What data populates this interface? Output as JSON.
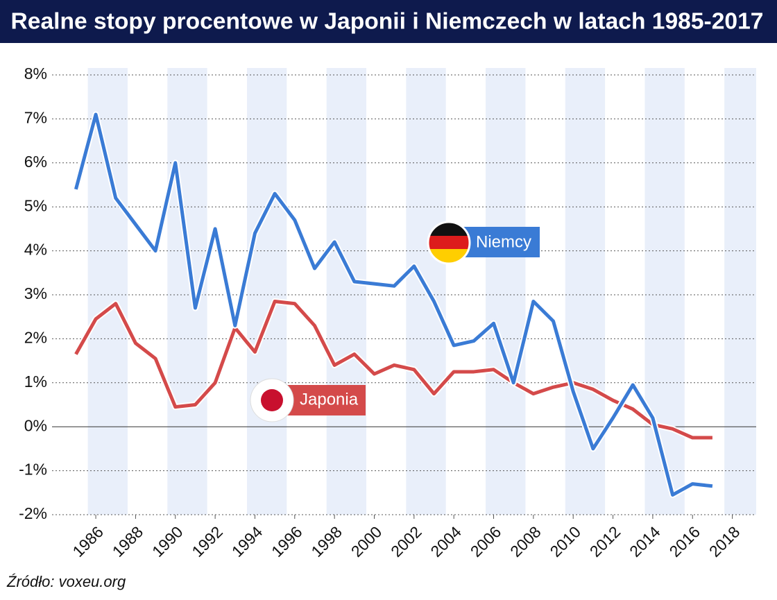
{
  "chart_data": {
    "type": "line",
    "title": "Realne stopy procentowe w Japonii i Niemczech w latach 1985-2017",
    "source": "Źródło: voxeu.org",
    "x": [
      1985,
      1986,
      1987,
      1988,
      1989,
      1990,
      1991,
      1992,
      1993,
      1994,
      1995,
      1996,
      1997,
      1998,
      1999,
      2000,
      2001,
      2002,
      2003,
      2004,
      2005,
      2006,
      2007,
      2008,
      2009,
      2010,
      2011,
      2012,
      2013,
      2014,
      2015,
      2016,
      2017
    ],
    "series": [
      {
        "name": "Niemcy",
        "color": "#3a7bd5",
        "values": [
          5.4,
          7.1,
          5.2,
          4.6,
          4.0,
          6.0,
          2.7,
          4.5,
          2.3,
          4.4,
          5.3,
          4.7,
          3.6,
          4.2,
          3.3,
          3.25,
          3.2,
          3.65,
          2.85,
          1.85,
          1.95,
          2.35,
          1.0,
          2.85,
          2.4,
          0.8,
          -0.5,
          0.2,
          0.95,
          0.2,
          -1.55,
          -1.3,
          -1.35
        ]
      },
      {
        "name": "Japonia",
        "color": "#d44a4a",
        "values": [
          1.65,
          2.45,
          2.8,
          1.9,
          1.55,
          0.45,
          0.5,
          1.0,
          2.25,
          1.7,
          2.85,
          2.8,
          2.3,
          1.4,
          1.65,
          1.2,
          1.4,
          1.3,
          0.75,
          1.25,
          1.25,
          1.3,
          1.0,
          0.75,
          0.9,
          1.0,
          0.85,
          0.6,
          0.4,
          0.05,
          -0.05,
          -0.25,
          -0.25
        ]
      }
    ],
    "xlim": [
      1983.8,
      2019.2
    ],
    "xticks": [
      1986,
      1988,
      1990,
      1992,
      1994,
      1996,
      1998,
      2000,
      2002,
      2004,
      2006,
      2008,
      2010,
      2012,
      2014,
      2016,
      2018
    ],
    "ylim": [
      -2,
      8
    ],
    "yticks": [
      {
        "value": -2,
        "label": "-2%"
      },
      {
        "value": -1,
        "label": "-1%"
      },
      {
        "value": 0,
        "label": "0%"
      },
      {
        "value": 1,
        "label": "1%"
      },
      {
        "value": 2,
        "label": "2%"
      },
      {
        "value": 3,
        "label": "3%"
      },
      {
        "value": 4,
        "label": "4%"
      },
      {
        "value": 5,
        "label": "5%"
      },
      {
        "value": 6,
        "label": "6%"
      },
      {
        "value": 7,
        "label": "7%"
      },
      {
        "value": 8,
        "label": "8%"
      }
    ],
    "grid": true
  }
}
